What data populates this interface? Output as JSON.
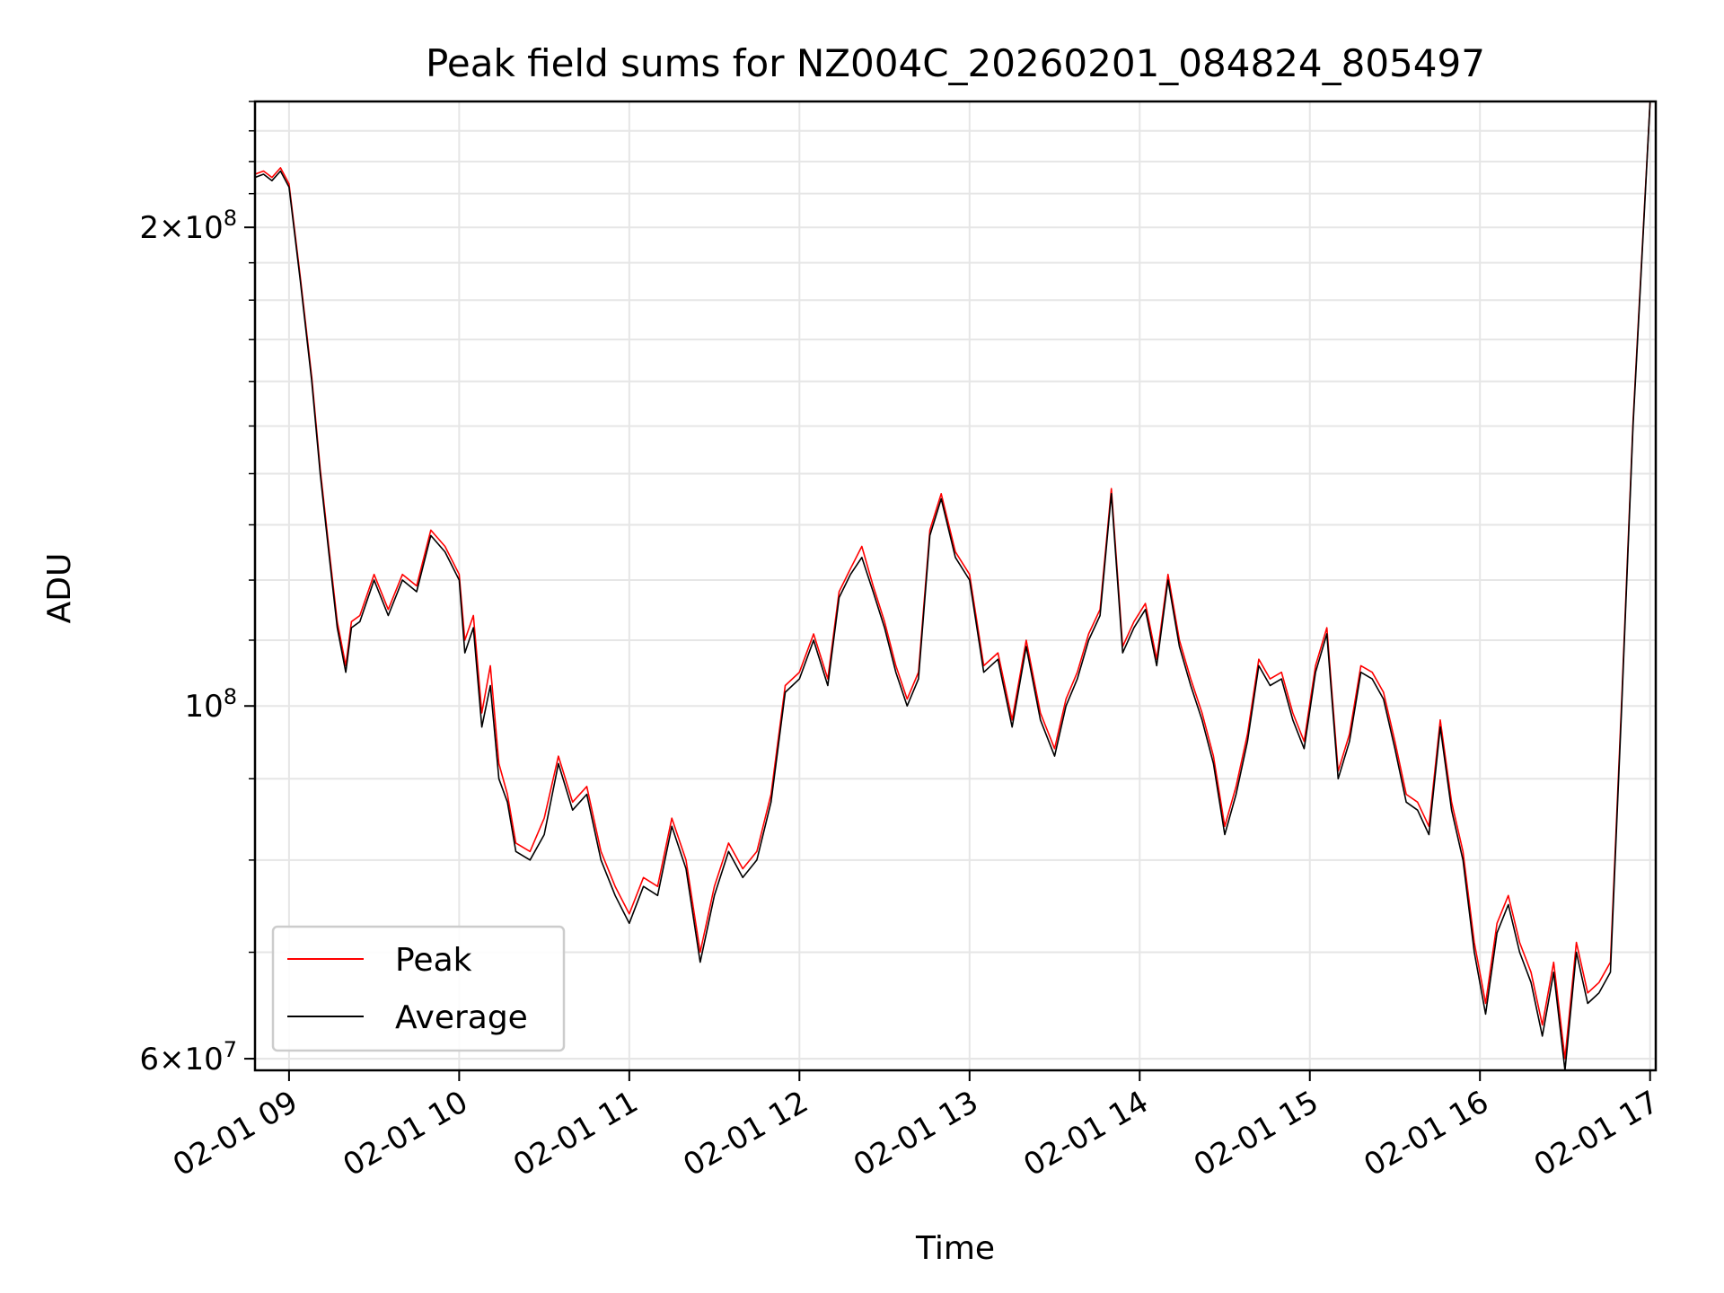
{
  "chart_data": {
    "type": "line",
    "title": "Peak field sums for NZ004C_20260201_084824_805497",
    "xlabel": "Time",
    "ylabel": "ADU",
    "y_scale": "log",
    "xlim": [
      "2026-02-01 08:48",
      "2026-02-01 17:02"
    ],
    "ylim": [
      59000000,
      240000000
    ],
    "x_ticks": [
      "02-01 09",
      "02-01 10",
      "02-01 11",
      "02-01 12",
      "02-01 13",
      "02-01 14",
      "02-01 15",
      "02-01 16",
      "02-01 17"
    ],
    "y_ticks": [
      {
        "value": 200000000,
        "mantissa": "2",
        "exponent": "8"
      },
      {
        "value": 100000000,
        "mantissa": "",
        "exponent": "8"
      },
      {
        "value": 60000000,
        "mantissa": "6",
        "exponent": "7"
      }
    ],
    "grid": true,
    "legend_location": "lower left",
    "colors": {
      "Peak": "#ff0000",
      "Average": "#000000"
    },
    "x": [
      "08:48",
      "08:51",
      "08:54",
      "08:57",
      "09:00",
      "09:04",
      "09:08",
      "09:11",
      "09:14",
      "09:17",
      "09:20",
      "09:22",
      "09:25",
      "09:30",
      "09:35",
      "09:40",
      "09:45",
      "09:50",
      "09:55",
      "10:00",
      "10:02",
      "10:05",
      "10:08",
      "10:11",
      "10:14",
      "10:17",
      "10:20",
      "10:25",
      "10:30",
      "10:35",
      "10:40",
      "10:45",
      "10:50",
      "10:55",
      "11:00",
      "11:05",
      "11:10",
      "11:15",
      "11:20",
      "11:25",
      "11:30",
      "11:35",
      "11:40",
      "11:45",
      "11:50",
      "11:55",
      "12:00",
      "12:05",
      "12:10",
      "12:14",
      "12:18",
      "12:22",
      "12:26",
      "12:30",
      "12:34",
      "12:38",
      "12:42",
      "12:46",
      "12:50",
      "12:55",
      "13:00",
      "13:05",
      "13:10",
      "13:15",
      "13:20",
      "13:25",
      "13:30",
      "13:34",
      "13:38",
      "13:42",
      "13:46",
      "13:50",
      "13:54",
      "13:58",
      "14:02",
      "14:06",
      "14:10",
      "14:14",
      "14:18",
      "14:22",
      "14:26",
      "14:30",
      "14:34",
      "14:38",
      "14:42",
      "14:46",
      "14:50",
      "14:54",
      "14:58",
      "15:02",
      "15:06",
      "15:10",
      "15:14",
      "15:18",
      "15:22",
      "15:26",
      "15:30",
      "15:34",
      "15:38",
      "15:42",
      "15:46",
      "15:50",
      "15:54",
      "15:58",
      "16:02",
      "16:06",
      "16:10",
      "16:14",
      "16:18",
      "16:22",
      "16:26",
      "16:30",
      "16:34",
      "16:38",
      "16:42",
      "16:46",
      "16:50",
      "16:54",
      "16:58",
      "17:00"
    ],
    "series": [
      {
        "name": "Average",
        "values": [
          215,
          216,
          214,
          217,
          212,
          185,
          160,
          140,
          125,
          112,
          105,
          112,
          113,
          120,
          114,
          120,
          118,
          128,
          125,
          120,
          108,
          112,
          97,
          103,
          90,
          87,
          81,
          80,
          83,
          92,
          86,
          88,
          80,
          76,
          73,
          77,
          76,
          84,
          79,
          69,
          76,
          81,
          78,
          80,
          87,
          102,
          104,
          110,
          103,
          117,
          121,
          124,
          118,
          112,
          105,
          100,
          104,
          128,
          135,
          124,
          120,
          105,
          107,
          97,
          109,
          98,
          93,
          100,
          104,
          110,
          114,
          136,
          108,
          112,
          115,
          106,
          120,
          109,
          103,
          98,
          92,
          83,
          88,
          95,
          106,
          103,
          104,
          98,
          94,
          105,
          111,
          90,
          95,
          105,
          104,
          101,
          94,
          87,
          86,
          83,
          97,
          86,
          80,
          70,
          64,
          72,
          75,
          70,
          67,
          62,
          68,
          59,
          70,
          65,
          66,
          68,
          100,
          150,
          205,
          240
        ]
      },
      {
        "name": "Peak",
        "values": [
          216,
          217,
          215,
          218,
          213,
          186,
          161,
          141,
          126,
          113,
          106,
          113,
          114,
          121,
          115,
          121,
          119,
          129,
          126,
          121,
          110,
          114,
          99,
          106,
          92,
          88,
          82,
          81,
          85,
          93,
          87,
          89,
          81,
          77,
          74,
          78,
          77,
          85,
          80,
          70,
          77,
          82,
          79,
          81,
          88,
          103,
          105,
          111,
          104,
          118,
          122,
          126,
          119,
          113,
          106,
          101,
          105,
          129,
          136,
          125,
          121,
          106,
          108,
          98,
          110,
          99,
          94,
          101,
          105,
          111,
          115,
          137,
          109,
          113,
          116,
          107,
          121,
          110,
          104,
          99,
          93,
          84,
          89,
          96,
          107,
          104,
          105,
          99,
          95,
          106,
          112,
          91,
          96,
          106,
          105,
          102,
          95,
          88,
          87,
          84,
          98,
          87,
          81,
          71,
          65,
          73,
          76,
          71,
          68,
          63,
          69,
          60,
          71,
          66,
          67,
          69,
          101,
          151,
          206,
          241
        ]
      }
    ]
  }
}
